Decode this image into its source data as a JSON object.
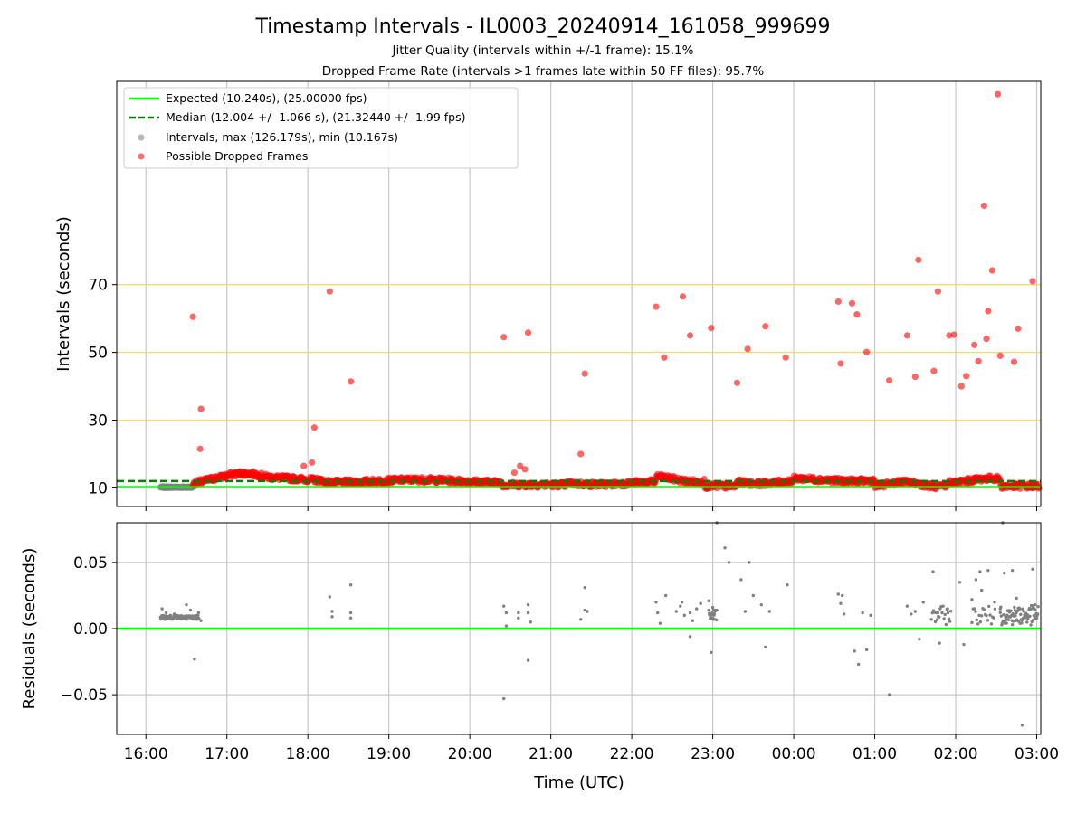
{
  "colors": {
    "expected": "#00ff00",
    "median": "#008000",
    "intervals": "#808080",
    "dropped": "#ff0000",
    "hline": "#ffd24d",
    "grid": "#c8c8c8"
  },
  "chart_data": {
    "title": "Timestamp Intervals - IL0003_20240914_161058_999699",
    "subtitle_1": "Jitter Quality (intervals within +/-1 frame): 15.1%",
    "subtitle_2": "Dropped Frame Rate (intervals >1 frames late within 50 FF files): 95.7%",
    "xlabel": "Time (UTC)",
    "x_ticks": [
      "16:00",
      "17:00",
      "18:00",
      "19:00",
      "20:00",
      "21:00",
      "22:00",
      "23:00",
      "00:00",
      "01:00",
      "02:00",
      "03:00"
    ],
    "x_range_hours": [
      15.64,
      27.05
    ],
    "top": {
      "type": "scatter",
      "ylabel": "Intervals (seconds)",
      "ylim": [
        4.5,
        130
      ],
      "y_ticks": [
        10,
        30,
        50,
        70
      ],
      "hlines": [
        30,
        50,
        70
      ],
      "grid": "x only",
      "expected": 10.24,
      "median": 12.004,
      "legend": {
        "position": "top-left",
        "entries": [
          "Expected (10.240s), (25.00000 fps)",
          "Median (12.004 +/- 1.066 s), (21.32440 +/- 1.99 fps)",
          "Intervals, max (126.179s), min (10.167s)",
          "Possible Dropped Frames"
        ]
      },
      "normal_interval_band": {
        "x_start": 16.18,
        "x_end": 16.58,
        "y": 10.2
      },
      "dropped_outliers": [
        [
          16.58,
          60.5
        ],
        [
          16.68,
          33.3
        ],
        [
          16.67,
          21.5
        ],
        [
          18.08,
          27.8
        ],
        [
          18.27,
          68
        ],
        [
          18.53,
          41.4
        ],
        [
          17.95,
          16.5
        ],
        [
          18.05,
          17.5
        ],
        [
          20.42,
          54.5
        ],
        [
          20.72,
          55.8
        ],
        [
          20.55,
          14.5
        ],
        [
          20.62,
          16.5
        ],
        [
          20.68,
          15.5
        ],
        [
          21.37,
          20
        ],
        [
          21.42,
          43.7
        ],
        [
          22.3,
          63.5
        ],
        [
          22.4,
          48.5
        ],
        [
          22.63,
          66.5
        ],
        [
          22.72,
          55
        ],
        [
          22.98,
          57.2
        ],
        [
          23.3,
          41
        ],
        [
          23.43,
          51
        ],
        [
          23.65,
          57.7
        ],
        [
          23.9,
          48.5
        ],
        [
          24.55,
          65
        ],
        [
          24.58,
          46.7
        ],
        [
          24.72,
          64.5
        ],
        [
          24.78,
          61.2
        ],
        [
          24.9,
          50.1
        ],
        [
          25.18,
          41.7
        ],
        [
          25.4,
          55
        ],
        [
          25.5,
          42.8
        ],
        [
          25.54,
          77.3
        ],
        [
          25.73,
          44.5
        ],
        [
          25.78,
          68
        ],
        [
          25.92,
          55
        ],
        [
          25.98,
          55.2
        ],
        [
          26.07,
          40
        ],
        [
          26.13,
          43
        ],
        [
          26.23,
          52.2
        ],
        [
          26.28,
          47.4
        ],
        [
          26.35,
          93.3
        ],
        [
          26.38,
          54
        ],
        [
          26.4,
          62.2
        ],
        [
          26.45,
          74.2
        ],
        [
          26.52,
          126.2
        ],
        [
          26.55,
          49
        ],
        [
          26.72,
          47.2
        ],
        [
          26.77,
          57
        ],
        [
          26.95,
          71
        ]
      ]
    },
    "bottom": {
      "type": "scatter",
      "ylabel": "Residuals (seconds)",
      "ylim": [
        -0.08,
        0.08
      ],
      "y_ticks": [
        "0.05",
        "0.00",
        "−0.05"
      ],
      "y_tick_values": [
        0.05,
        0.0,
        -0.05
      ],
      "grid": "both",
      "zero_line": 0.0,
      "points": [
        [
          16.2,
          0.015
        ],
        [
          16.25,
          0.012
        ],
        [
          16.35,
          0.011
        ],
        [
          16.5,
          0.018
        ],
        [
          16.55,
          0.014
        ],
        [
          16.6,
          -0.023
        ],
        [
          16.65,
          0.012
        ],
        [
          16.68,
          0.006
        ],
        [
          18.27,
          0.024
        ],
        [
          18.3,
          0.013
        ],
        [
          18.3,
          0.009
        ],
        [
          18.53,
          0.033
        ],
        [
          18.53,
          0.012
        ],
        [
          18.53,
          0.008
        ],
        [
          20.42,
          -0.053
        ],
        [
          20.42,
          0.017
        ],
        [
          20.45,
          0.012
        ],
        [
          20.45,
          0.002
        ],
        [
          20.6,
          0.012
        ],
        [
          20.6,
          0.008
        ],
        [
          20.72,
          0.018
        ],
        [
          20.72,
          0.012
        ],
        [
          20.75,
          0.005
        ],
        [
          20.72,
          -0.024
        ],
        [
          21.37,
          0.007
        ],
        [
          21.42,
          0.031
        ],
        [
          21.42,
          0.014
        ],
        [
          21.45,
          0.013
        ],
        [
          22.3,
          0.02
        ],
        [
          22.32,
          0.012
        ],
        [
          22.35,
          0.004
        ],
        [
          22.42,
          0.025
        ],
        [
          22.55,
          0.013
        ],
        [
          22.6,
          0.017
        ],
        [
          22.62,
          0.02
        ],
        [
          22.65,
          0.01
        ],
        [
          22.72,
          -0.006
        ],
        [
          22.72,
          0.012
        ],
        [
          22.75,
          0.006
        ],
        [
          22.8,
          0.015
        ],
        [
          22.85,
          0.019
        ],
        [
          22.98,
          -0.018
        ],
        [
          22.95,
          0.021
        ],
        [
          23.0,
          0.016
        ],
        [
          23.02,
          0.011
        ],
        [
          23.05,
          0.014
        ],
        [
          23.15,
          0.061
        ],
        [
          23.2,
          0.05
        ],
        [
          23.35,
          0.037
        ],
        [
          23.4,
          0.013
        ],
        [
          23.45,
          0.05
        ],
        [
          23.5,
          0.025
        ],
        [
          23.6,
          0.018
        ],
        [
          23.65,
          -0.014
        ],
        [
          23.7,
          0.013
        ],
        [
          23.92,
          0.033
        ],
        [
          24.55,
          0.026
        ],
        [
          24.58,
          0.019
        ],
        [
          24.6,
          0.025
        ],
        [
          24.62,
          0.011
        ],
        [
          24.75,
          -0.017
        ],
        [
          24.8,
          -0.027
        ],
        [
          24.85,
          0.012
        ],
        [
          24.9,
          -0.016
        ],
        [
          24.95,
          0.01
        ],
        [
          25.18,
          -0.05
        ],
        [
          25.4,
          0.017
        ],
        [
          25.45,
          0.011
        ],
        [
          25.5,
          0.013
        ],
        [
          25.55,
          -0.008
        ],
        [
          25.6,
          0.02
        ],
        [
          25.72,
          0.043
        ],
        [
          25.78,
          0.012
        ],
        [
          25.8,
          -0.011
        ],
        [
          25.9,
          0.015
        ],
        [
          26.05,
          0.035
        ],
        [
          26.1,
          -0.012
        ],
        [
          26.2,
          0.022
        ],
        [
          26.25,
          0.037
        ],
        [
          26.3,
          0.043
        ],
        [
          26.32,
          0.029
        ],
        [
          26.4,
          0.044
        ],
        [
          26.48,
          0.02
        ],
        [
          26.55,
          0.015
        ],
        [
          26.6,
          0.042
        ],
        [
          26.7,
          0.044
        ],
        [
          26.75,
          0.023
        ],
        [
          26.82,
          -0.073
        ],
        [
          26.95,
          0.045
        ],
        [
          26.98,
          0.018
        ],
        [
          26.58,
          0.08
        ],
        [
          23.05,
          0.08
        ]
      ]
    }
  }
}
